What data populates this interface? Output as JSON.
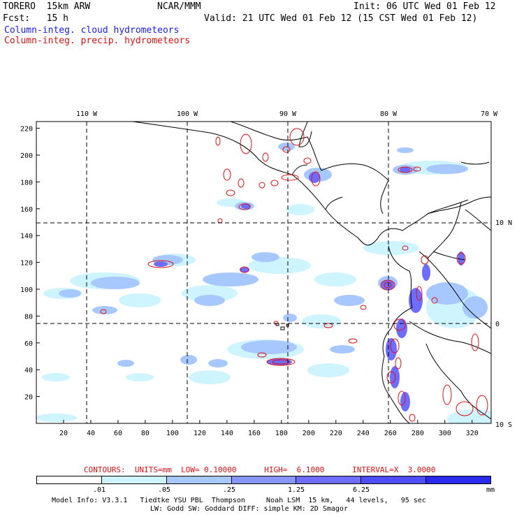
{
  "header": {
    "left_line1": "TORERO  15km ARW",
    "center_line1": "NCAR/MMM",
    "right_line1": "Init: 06 UTC Wed 01 Feb 12",
    "left_line2": "Fcst:   15 h",
    "right_line2": "Valid: 21 UTC Wed 01 Feb 12 (15 CST Wed 01 Feb 12)",
    "field1": "Column-integ. cloud hydrometeors",
    "field2": "Column-integ. precip. hydrometeors"
  },
  "colors": {
    "cloud_field": "#1a1aff",
    "precip_contour": "#e01010",
    "lev1": "#cdf4ff",
    "lev2": "#a6c8ff",
    "lev3": "#8a96ff",
    "lev4": "#6f6dff",
    "lev5": "#4d4cff",
    "lev6": "#2a2aee"
  },
  "map": {
    "lon_labels_top": [
      "110 W",
      "100 W",
      "90 W",
      "80 W",
      "70 W"
    ],
    "lat_labels_right": [
      "10 N",
      "0",
      "10 S"
    ],
    "x_ticks": [
      "20",
      "40",
      "60",
      "80",
      "100",
      "120",
      "140",
      "160",
      "180",
      "200",
      "220",
      "240",
      "260",
      "280",
      "300",
      "320"
    ],
    "y_ticks": [
      "20",
      "40",
      "60",
      "80",
      "100",
      "120",
      "140",
      "160",
      "180",
      "200",
      "220"
    ],
    "x_range": [
      0,
      334
    ],
    "y_range": [
      0,
      225
    ]
  },
  "contour_info": {
    "text": "CONTOURS:  UNITS=mm  LOW= 0.10000      HIGH=  6.1000      INTERVAL=X  3.0000"
  },
  "colorbar": {
    "labels": [
      ".01",
      ".05",
      ".25",
      "1.25",
      "6.25"
    ],
    "units": "mm",
    "levels": [
      "#ffffff",
      "#cdf4ff",
      "#a6c8ff",
      "#8a96ff",
      "#6f6dff",
      "#4d4cff",
      "#2a2aee"
    ]
  },
  "footer": {
    "line1": "Model Info: V3.3.1   Tiedtke YSU PBL  Thompson     Noah LSM  15 km,   44 levels,   95 sec",
    "line2": "LW: Godd SW: Goddard DIFF: simple KM: 2D Smagor"
  }
}
